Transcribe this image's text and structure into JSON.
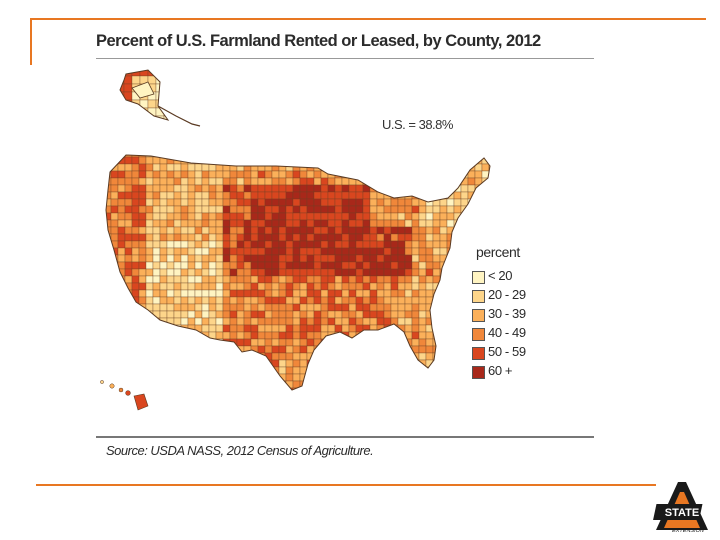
{
  "slide": {
    "title": "Percent of U.S. Farmland Rented or Leased, by County, 2012",
    "us_stat": "U.S. = 38.8%",
    "source": "Source: USDA NASS, 2012 Census of Agriculture."
  },
  "legend": {
    "heading": "percent",
    "items": [
      {
        "label": "< 20",
        "color": "#fff4c2"
      },
      {
        "label": "20 - 29",
        "color": "#fdd58a"
      },
      {
        "label": "30 - 39",
        "color": "#fbb05a"
      },
      {
        "label": "40 - 49",
        "color": "#f0873a"
      },
      {
        "label": "50 - 59",
        "color": "#d9461f"
      },
      {
        "label": "60 +",
        "color": "#a8281a"
      }
    ]
  },
  "map": {
    "regions_shown": [
      "contiguous-us",
      "alaska",
      "hawaii"
    ]
  },
  "logo": {
    "text": "STATE",
    "subtext": "EXTENSION",
    "colors": {
      "orange": "#e87722",
      "black": "#1a1a1a"
    }
  },
  "theme": {
    "accent": "#e87722"
  }
}
